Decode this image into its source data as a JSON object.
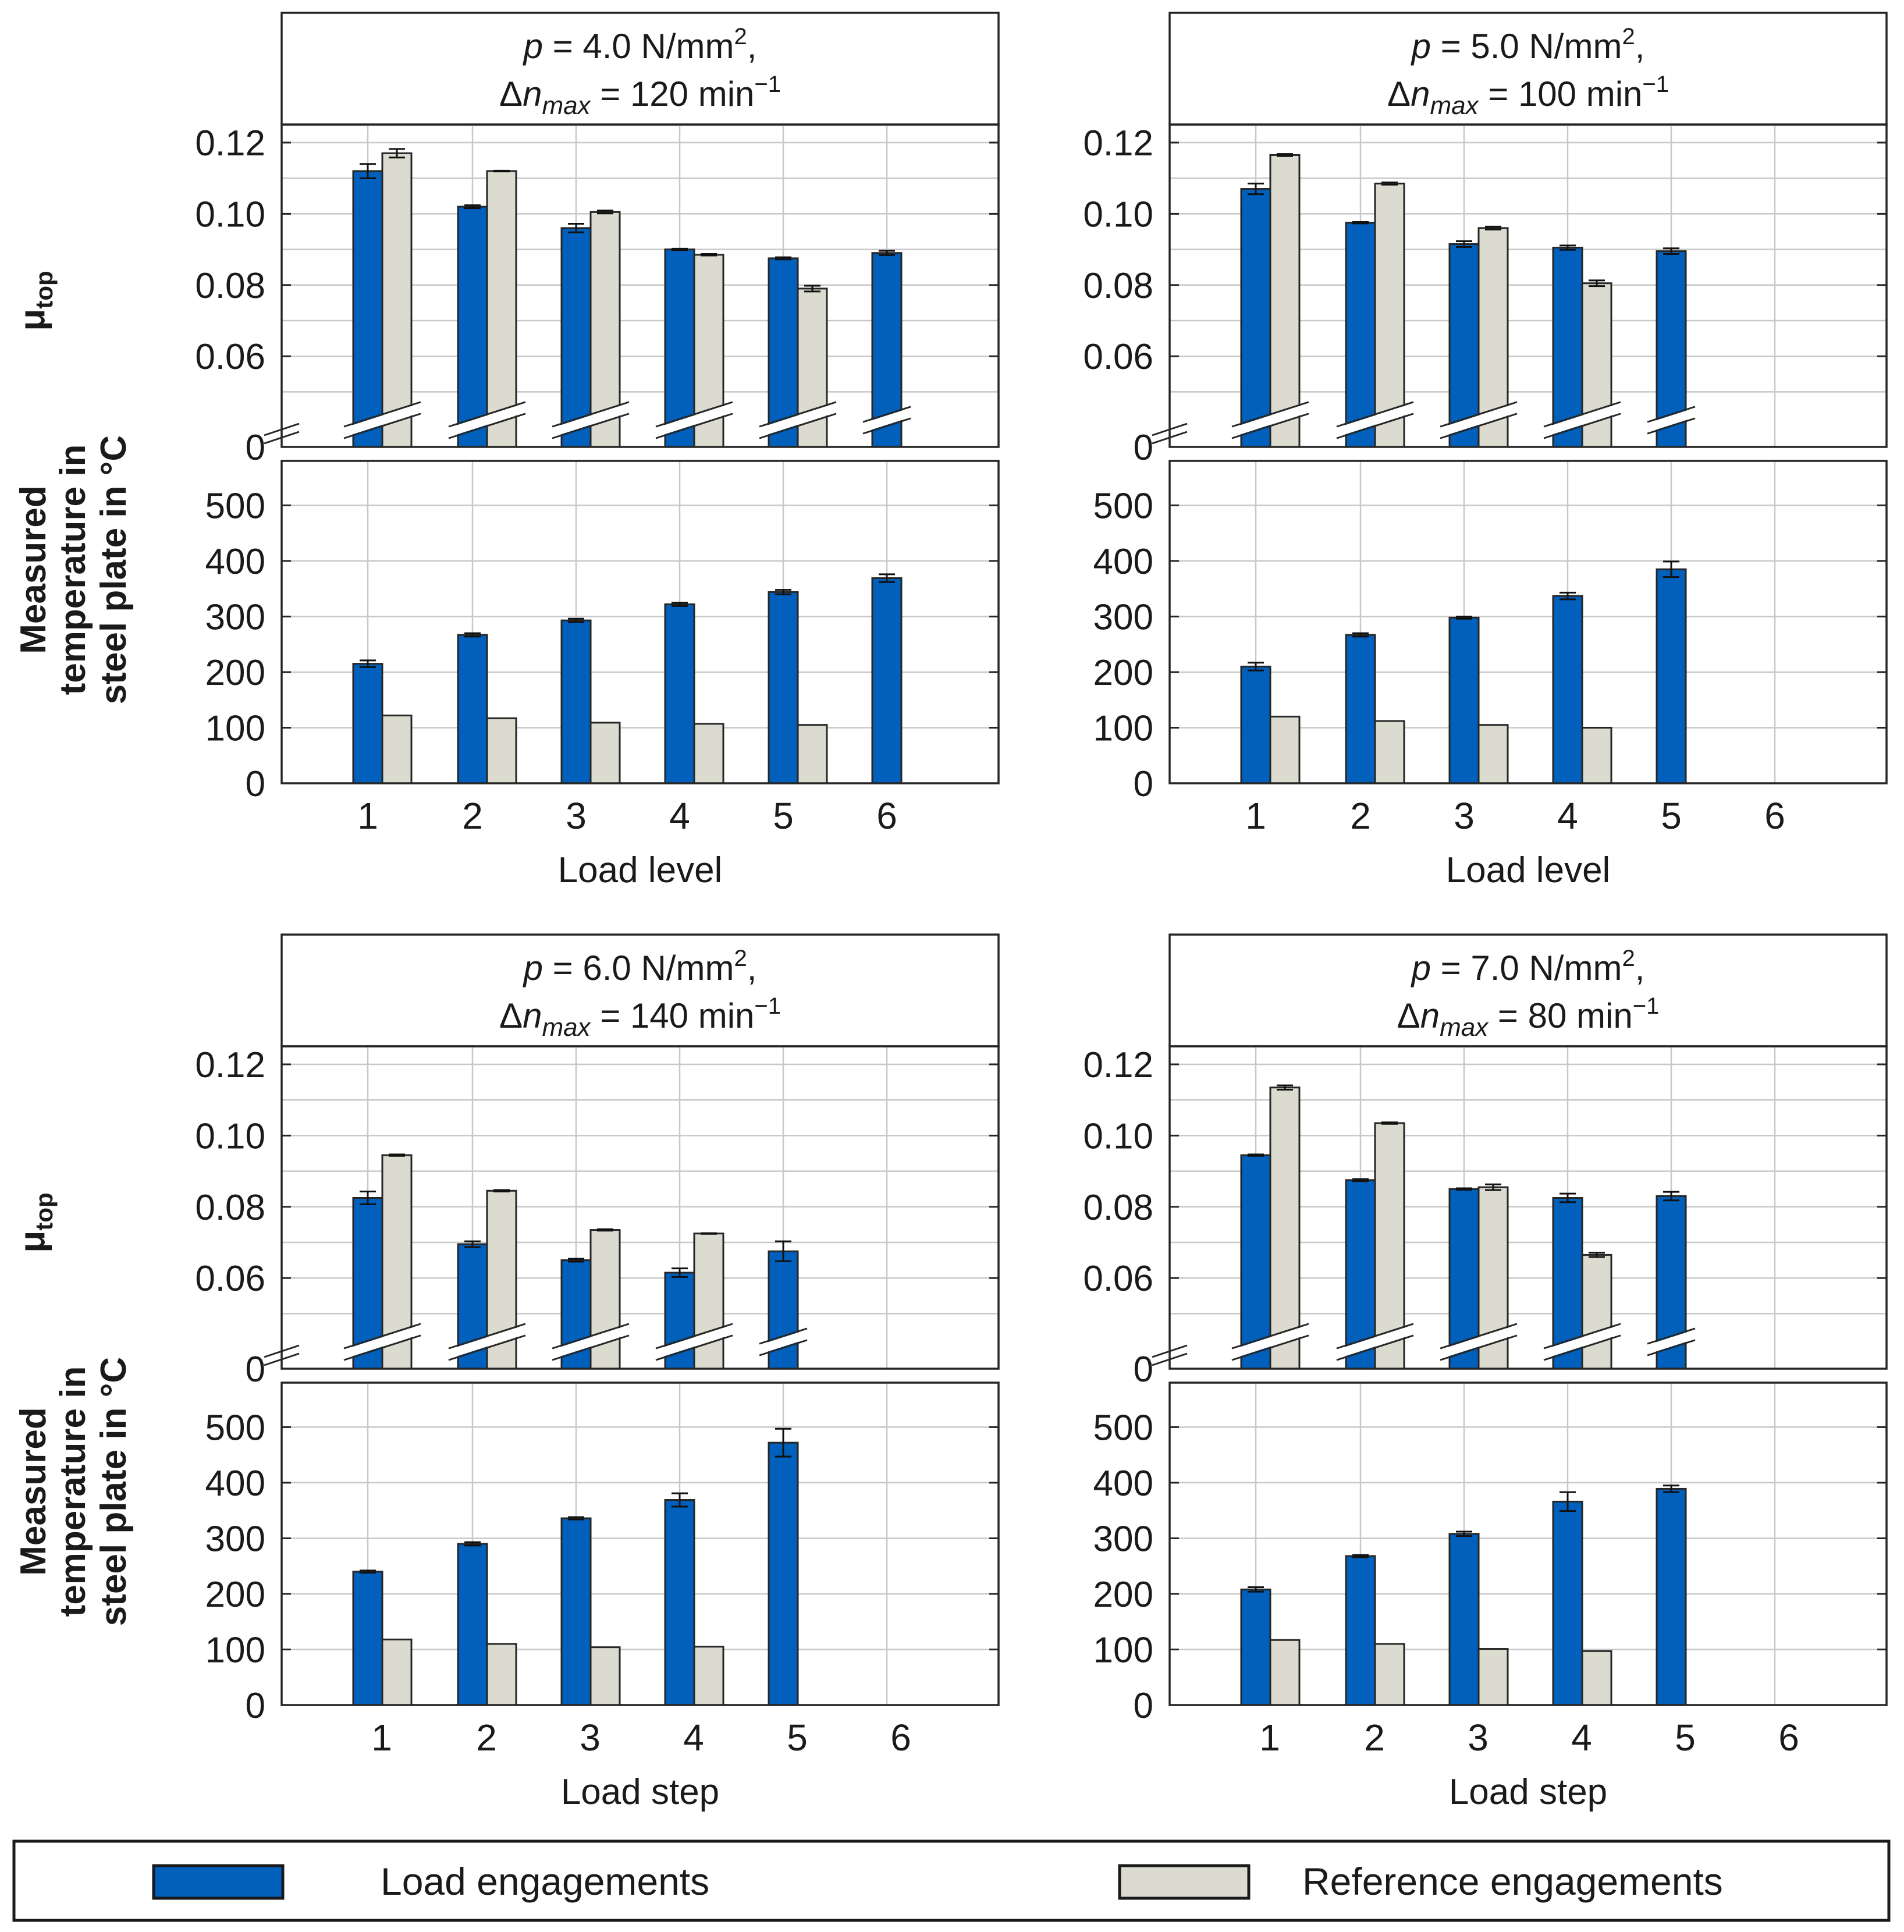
{
  "colors": {
    "load": "#0060BC",
    "reference": "#DCDBD0",
    "frame": "#262626",
    "grid": "#C8C8C8",
    "text": "#1A1A1A"
  },
  "legend": {
    "load_label": "Load engagements",
    "reference_label": "Reference engagements"
  },
  "y_labels": {
    "mu": "μ",
    "mu_sub": "top",
    "temp_lines": [
      "Measured",
      "temperature in",
      "steel plate in °C"
    ]
  },
  "chart_data": [
    {
      "type": "bar",
      "title": {
        "p": "4.0",
        "dn": "120",
        "unit_p": "N/mm",
        "unit_n": "min"
      },
      "xlabel": "Load level",
      "categories": [
        "1",
        "2",
        "3",
        "4",
        "5",
        "6"
      ],
      "mu": {
        "ylim": [
          0,
          0.125
        ],
        "ticks": [
          "0",
          "0.06",
          "0.08",
          "0.10",
          "0.12"
        ],
        "series": [
          {
            "name": "Load engagements",
            "values": [
              0.112,
              0.102,
              0.096,
              0.09,
              0.0875,
              0.089
            ],
            "errors": [
              0.002,
              0.0004,
              0.0012,
              0.0002,
              0.0003,
              0.0006
            ]
          },
          {
            "name": "Reference engagements",
            "values": [
              0.117,
              0.112,
              0.1005,
              0.0885,
              0.079,
              null
            ],
            "errors": [
              0.0012,
              0.0001,
              0.0004,
              0.0002,
              0.0008,
              null
            ]
          }
        ]
      },
      "temp": {
        "ylim": [
          0,
          580
        ],
        "ticks": [
          "0",
          "100",
          "200",
          "300",
          "400",
          "500"
        ],
        "series": [
          {
            "name": "Load engagements",
            "values": [
              215,
              267,
              293,
              322,
              344,
              369
            ],
            "errors": [
              6,
              3,
              3,
              3,
              4,
              7
            ]
          },
          {
            "name": "Reference engagements",
            "values": [
              122,
              117,
              109,
              107,
              105,
              null
            ],
            "errors": [
              0,
              0,
              0,
              0,
              0,
              null
            ]
          }
        ]
      }
    },
    {
      "type": "bar",
      "title": {
        "p": "5.0",
        "dn": "100",
        "unit_p": "N/mm",
        "unit_n": "min"
      },
      "xlabel": "Load level",
      "categories": [
        "1",
        "2",
        "3",
        "4",
        "5",
        "6"
      ],
      "mu": {
        "ylim": [
          0,
          0.125
        ],
        "ticks": [
          "0",
          "0.06",
          "0.08",
          "0.10",
          "0.12"
        ],
        "series": [
          {
            "name": "Load engagements",
            "values": [
              0.107,
              0.0975,
              0.0915,
              0.0905,
              0.0895,
              null
            ],
            "errors": [
              0.0015,
              0.0002,
              0.0008,
              0.0006,
              0.0008,
              null
            ]
          },
          {
            "name": "Reference engagements",
            "values": [
              0.1165,
              0.1085,
              0.096,
              0.0805,
              null,
              null
            ],
            "errors": [
              0.0003,
              0.0003,
              0.0004,
              0.0008,
              null,
              null
            ]
          }
        ]
      },
      "temp": {
        "ylim": [
          0,
          580
        ],
        "ticks": [
          "0",
          "100",
          "200",
          "300",
          "400",
          "500"
        ],
        "series": [
          {
            "name": "Load engagements",
            "values": [
              210,
              267,
              298,
              337,
              385,
              null
            ],
            "errors": [
              7,
              3,
              2,
              6,
              14,
              null
            ]
          },
          {
            "name": "Reference engagements",
            "values": [
              120,
              112,
              105,
              100,
              null,
              null
            ],
            "errors": [
              0,
              0,
              0,
              0,
              null,
              null
            ]
          }
        ]
      }
    },
    {
      "type": "bar",
      "title": {
        "p": "6.0",
        "dn": "140",
        "unit_p": "N/mm",
        "unit_n": "min"
      },
      "xlabel": "Load step",
      "categories": [
        "1",
        "2",
        "3",
        "4",
        "5",
        "6"
      ],
      "mu": {
        "ylim": [
          0,
          0.125
        ],
        "ticks": [
          "0",
          "0.06",
          "0.08",
          "0.10",
          "0.12"
        ],
        "series": [
          {
            "name": "Load engagements",
            "values": [
              0.0825,
              0.0695,
              0.065,
              0.0615,
              0.0675,
              null
            ],
            "errors": [
              0.0018,
              0.0008,
              0.0004,
              0.0012,
              0.0028,
              null
            ]
          },
          {
            "name": "Reference engagements",
            "values": [
              0.0945,
              0.0845,
              0.0735,
              0.0725,
              null,
              null
            ],
            "errors": [
              0.0002,
              0.0002,
              0.0002,
              0.0001,
              null,
              null
            ]
          }
        ]
      },
      "temp": {
        "ylim": [
          0,
          580
        ],
        "ticks": [
          "0",
          "100",
          "200",
          "300",
          "400",
          "500"
        ],
        "series": [
          {
            "name": "Load engagements",
            "values": [
              240,
              290,
              336,
              369,
              472,
              null
            ],
            "errors": [
              2,
              3,
              2,
              12,
              25,
              null
            ]
          },
          {
            "name": "Reference engagements",
            "values": [
              118,
              110,
              104,
              105,
              null,
              null
            ],
            "errors": [
              0,
              0,
              0,
              0,
              null,
              null
            ]
          }
        ]
      }
    },
    {
      "type": "bar",
      "title": {
        "p": "7.0",
        "dn": "80",
        "unit_p": "N/mm",
        "unit_n": "min"
      },
      "xlabel": "Load step",
      "categories": [
        "1",
        "2",
        "3",
        "4",
        "5",
        "6"
      ],
      "mu": {
        "ylim": [
          0,
          0.125
        ],
        "ticks": [
          "0",
          "0.06",
          "0.08",
          "0.10",
          "0.12"
        ],
        "series": [
          {
            "name": "Load engagements",
            "values": [
              0.0945,
              0.0875,
              0.085,
              0.0825,
              0.083,
              null
            ],
            "errors": [
              0.0002,
              0.0003,
              0.0002,
              0.0012,
              0.0012,
              null
            ]
          },
          {
            "name": "Reference engagements",
            "values": [
              0.1135,
              0.1035,
              0.0855,
              0.0665,
              null,
              null
            ],
            "errors": [
              0.0006,
              0.0002,
              0.0008,
              0.0006,
              null,
              null
            ]
          }
        ]
      },
      "temp": {
        "ylim": [
          0,
          580
        ],
        "ticks": [
          "0",
          "100",
          "200",
          "300",
          "400",
          "500"
        ],
        "series": [
          {
            "name": "Load engagements",
            "values": [
              208,
              268,
              308,
              366,
              389,
              null
            ],
            "errors": [
              4,
              2,
              4,
              17,
              6,
              null
            ]
          },
          {
            "name": "Reference engagements",
            "values": [
              117,
              110,
              101,
              97,
              null,
              null
            ],
            "errors": [
              0,
              0,
              0,
              0,
              null,
              null
            ]
          }
        ]
      }
    }
  ]
}
